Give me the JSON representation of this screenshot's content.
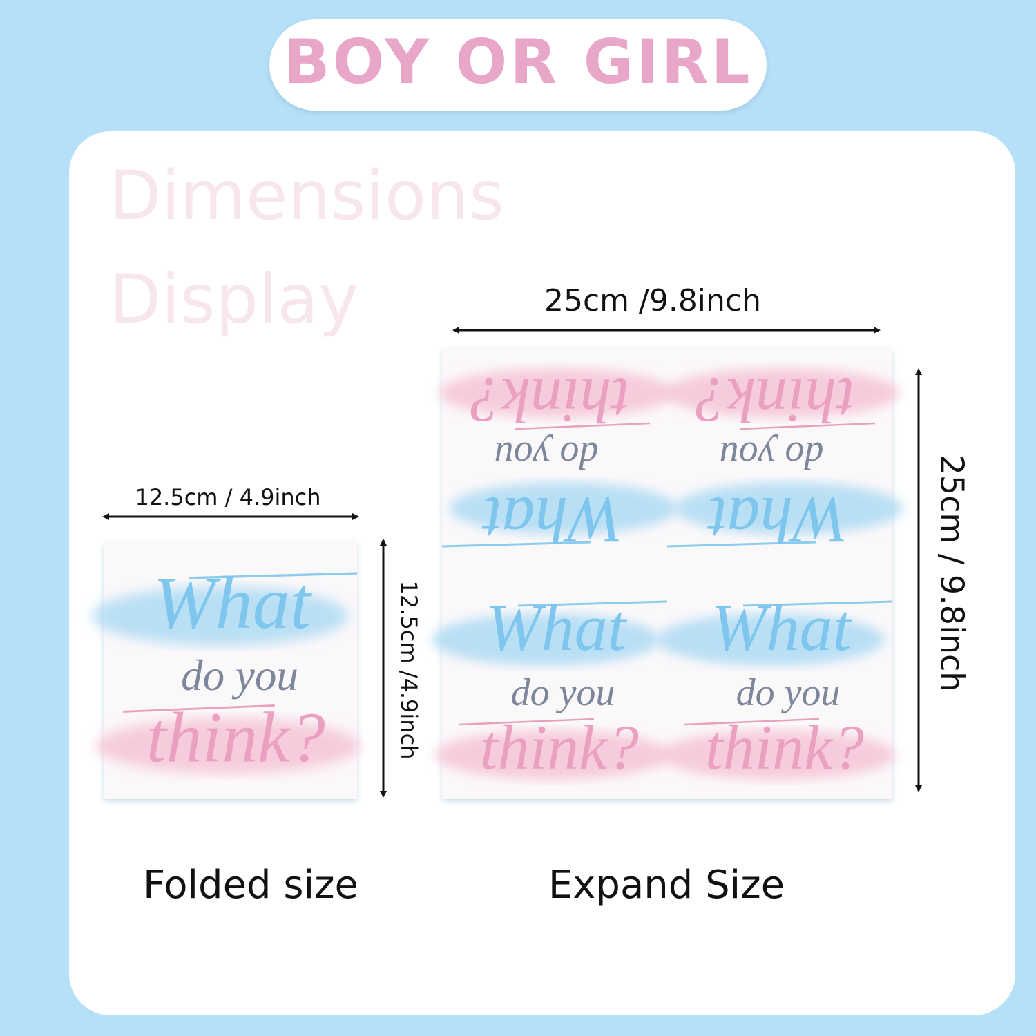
{
  "header": {
    "title": "BOY OR GIRL"
  },
  "watermark": {
    "lines": [
      "Dimensions",
      "Display"
    ]
  },
  "napkin_text": {
    "line1": "What",
    "line2": "do you",
    "line3": "think?"
  },
  "folded": {
    "width_label": "12.5cm / 4.9inch",
    "height_label": "12.5cm /4.9inch",
    "caption": "Folded size"
  },
  "expanded": {
    "width_label": "25cm  /9.8inch",
    "height_label": "25cm / 9.8inch",
    "caption": "Expand Size"
  }
}
